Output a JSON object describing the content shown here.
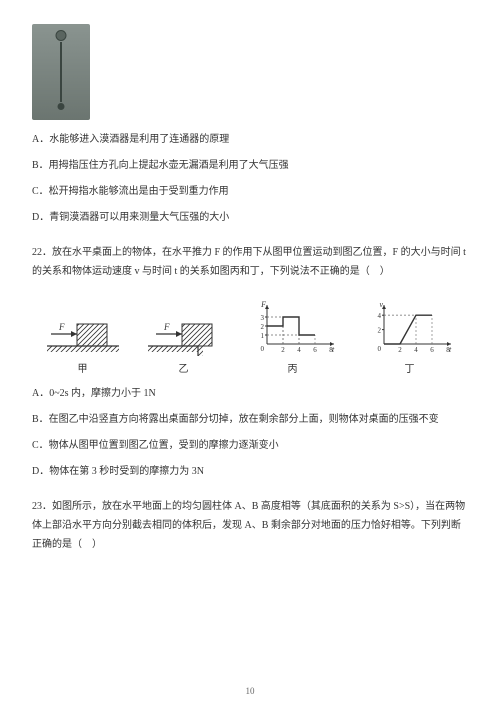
{
  "device_image": {
    "width": 58,
    "height": 96
  },
  "q21": {
    "options": {
      "A": "A．水能够进入漠酒器是利用了连通器的原理",
      "B": "B．用拇指压住方孔向上提起水壶无漏酒是利用了大气压强",
      "C": "C．松开拇指水能够流出是由于受到重力作用",
      "D": "D．青铜漠酒器可以用来测量大气压强的大小"
    }
  },
  "q22": {
    "stem": "22．放在水平桌面上的物体，在水平推力 F 的作用下从图甲位置运动到图乙位置，F 的大小与时间 t 的关系和物体运动速度 v 与时间 t 的关系如图丙和丁，下列说法不正确的是（　）",
    "labels": {
      "jia": "甲",
      "yi": "乙",
      "bing": "丙",
      "ding": "丁"
    },
    "chart_bing": {
      "type": "step-line",
      "xlabel": "t",
      "ylabel": "F",
      "xlim": [
        0,
        8
      ],
      "ylim": [
        0,
        4
      ],
      "xticks": [
        2,
        4,
        6,
        8
      ],
      "yticks": [
        1,
        2,
        3
      ],
      "points": [
        [
          0,
          2
        ],
        [
          2,
          2
        ],
        [
          2,
          3
        ],
        [
          4,
          3
        ],
        [
          4,
          1
        ],
        [
          6,
          1
        ]
      ],
      "axis_color": "#333333",
      "line_color": "#333333",
      "dash_color": "#666666"
    },
    "chart_ding": {
      "type": "line",
      "xlabel": "t",
      "ylabel": "v",
      "xlim": [
        0,
        8
      ],
      "ylim": [
        0,
        5
      ],
      "xticks": [
        2,
        4,
        6,
        8
      ],
      "yticks": [
        2,
        4
      ],
      "points": [
        [
          0,
          0
        ],
        [
          2,
          0
        ],
        [
          4,
          4
        ],
        [
          6,
          4
        ]
      ],
      "axis_color": "#333333",
      "line_color": "#333333",
      "dash_color": "#666666"
    },
    "options": {
      "A": "A．0~2s 内，摩擦力小于 1N",
      "B": "B．在图乙中沿竖直方向将露出桌面部分切掉，放在剩余部分上面，则物体对桌面的压强不变",
      "C": "C．物体从图甲位置到图乙位置，受到的摩擦力逐渐变小",
      "D": "D．物体在第 3 秒时受到的摩擦力为 3N"
    }
  },
  "q23": {
    "stem": "23．如图所示，放在水平地面上的均匀圆柱体 A、B 高度相等（其底面积的关系为 S>S），当在两物体上部沿水平方向分别截去相同的体积后，发现 A、B 剩余部分对地面的压力恰好相等。下列判断正确的是（　）"
  },
  "page_number": "10",
  "colors": {
    "text": "#333333",
    "hatch": "#333333",
    "bg": "#ffffff",
    "axis": "#333333"
  }
}
